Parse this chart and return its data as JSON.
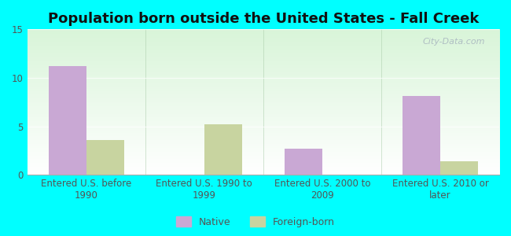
{
  "title": "Population born outside the United States - Fall Creek",
  "categories": [
    "Entered U.S. before\n1990",
    "Entered U.S. 1990 to\n1999",
    "Entered U.S. 2000 to\n2009",
    "Entered U.S. 2010 or\nlater"
  ],
  "native_values": [
    11.2,
    0,
    2.7,
    8.1
  ],
  "foreign_values": [
    3.6,
    5.2,
    0,
    1.4
  ],
  "native_color": "#c9a8d4",
  "foreign_color": "#c8d4a0",
  "ylim": [
    0,
    15
  ],
  "yticks": [
    0,
    5,
    10,
    15
  ],
  "bar_width": 0.32,
  "outer_bg": "#00ffff",
  "legend_native": "Native",
  "legend_foreign": "Foreign-born",
  "title_fontsize": 13,
  "tick_fontsize": 8.5,
  "legend_fontsize": 9,
  "watermark": "City-Data.com"
}
